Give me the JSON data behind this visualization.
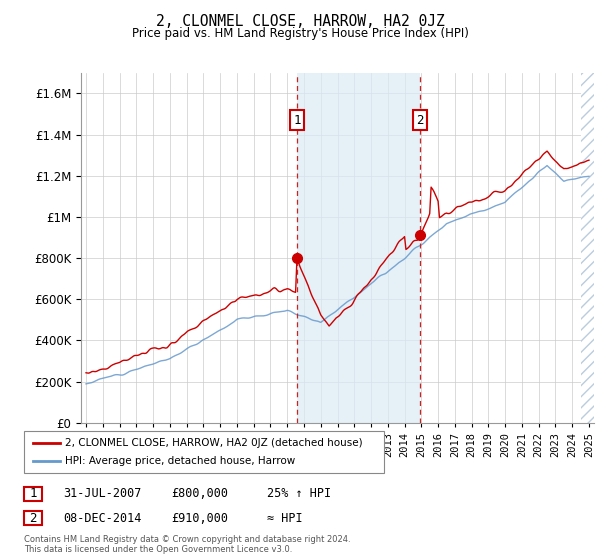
{
  "title": "2, CLONMEL CLOSE, HARROW, HA2 0JZ",
  "subtitle": "Price paid vs. HM Land Registry's House Price Index (HPI)",
  "legend_line1": "2, CLONMEL CLOSE, HARROW, HA2 0JZ (detached house)",
  "legend_line2": "HPI: Average price, detached house, Harrow",
  "annotation1_label": "1",
  "annotation1_date": "31-JUL-2007",
  "annotation1_price": "£800,000",
  "annotation1_hpi": "25% ↑ HPI",
  "annotation2_label": "2",
  "annotation2_date": "08-DEC-2014",
  "annotation2_price": "£910,000",
  "annotation2_hpi": "≈ HPI",
  "footnote_line1": "Contains HM Land Registry data © Crown copyright and database right 2024.",
  "footnote_line2": "This data is licensed under the Open Government Licence v3.0.",
  "line1_color": "#cc0000",
  "line2_color": "#6699cc",
  "shade_color": "#daeaf5",
  "ylim": [
    0,
    1700000
  ],
  "yticks": [
    0,
    200000,
    400000,
    600000,
    800000,
    1000000,
    1200000,
    1400000,
    1600000
  ],
  "purchase1_x": 2007.58,
  "purchase1_y": 800000,
  "purchase2_x": 2014.93,
  "purchase2_y": 910000,
  "shade_start": 2007.58,
  "shade_end": 2014.93,
  "hatch_start": 2024.5,
  "xlim_start": 1994.7,
  "xlim_end": 2025.3
}
